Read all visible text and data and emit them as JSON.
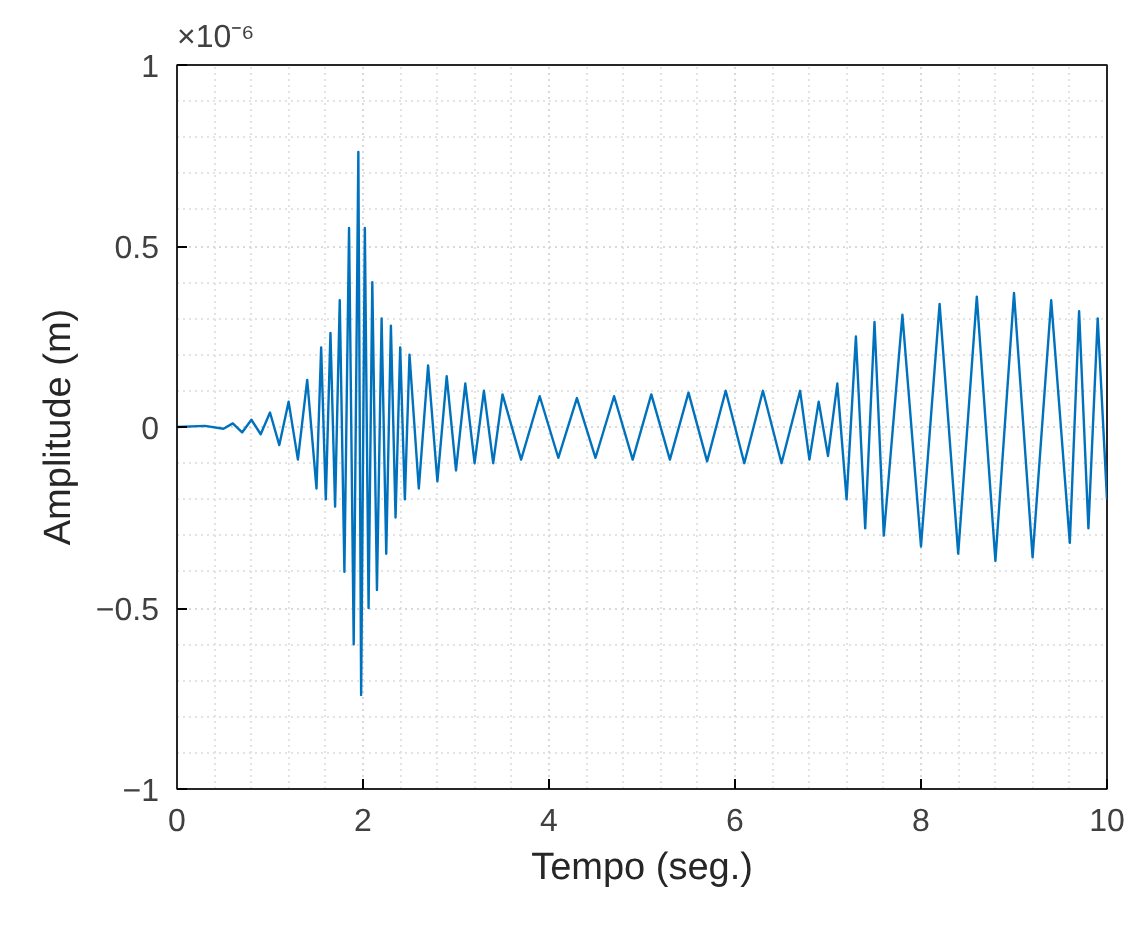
{
  "chart_data": {
    "type": "line",
    "xlabel": "Tempo (seg.)",
    "ylabel": "Amplitude (m)",
    "annotations": [
      "×10⁻⁶"
    ],
    "xlim": [
      0,
      10
    ],
    "xticks": [
      0,
      2,
      4,
      6,
      8,
      10
    ],
    "ylim": [
      -1,
      1
    ],
    "yticks": [
      -1,
      -0.5,
      0,
      0.5,
      1
    ],
    "grid": true,
    "line_style": "solid",
    "series": [
      {
        "color": "#0072bd",
        "x": [
          0,
          0.3,
          0.5,
          0.6,
          0.7,
          0.8,
          0.9,
          1.0,
          1.1,
          1.2,
          1.3,
          1.4,
          1.5,
          1.55,
          1.6,
          1.65,
          1.7,
          1.75,
          1.8,
          1.85,
          1.9,
          1.95,
          1.98,
          2.02,
          2.06,
          2.1,
          2.15,
          2.2,
          2.25,
          2.3,
          2.35,
          2.4,
          2.45,
          2.5,
          2.6,
          2.7,
          2.8,
          2.9,
          3.0,
          3.1,
          3.2,
          3.3,
          3.4,
          3.5,
          3.7,
          3.9,
          4.1,
          4.3,
          4.5,
          4.7,
          4.9,
          5.1,
          5.3,
          5.5,
          5.7,
          5.9,
          6.1,
          6.3,
          6.5,
          6.7,
          6.8,
          6.9,
          7.0,
          7.1,
          7.2,
          7.3,
          7.4,
          7.5,
          7.6,
          7.8,
          8.0,
          8.2,
          8.4,
          8.6,
          8.8,
          9.0,
          9.2,
          9.4,
          9.6,
          9.7,
          9.8,
          9.9,
          10.0
        ],
        "values": [
          0,
          0.003,
          -0.005,
          0.01,
          -0.015,
          0.02,
          -0.02,
          0.04,
          -0.05,
          0.07,
          -0.09,
          0.13,
          -0.17,
          0.22,
          -0.2,
          0.26,
          -0.22,
          0.35,
          -0.4,
          0.55,
          -0.6,
          0.76,
          -0.74,
          0.55,
          -0.5,
          0.4,
          -0.45,
          0.3,
          -0.35,
          0.28,
          -0.25,
          0.22,
          -0.2,
          0.2,
          -0.17,
          0.17,
          -0.15,
          0.14,
          -0.12,
          0.12,
          -0.1,
          0.1,
          -0.1,
          0.09,
          -0.09,
          0.085,
          -0.085,
          0.08,
          -0.085,
          0.085,
          -0.09,
          0.09,
          -0.09,
          0.095,
          -0.095,
          0.1,
          -0.1,
          0.1,
          -0.1,
          0.1,
          -0.09,
          0.07,
          -0.08,
          0.12,
          -0.2,
          0.25,
          -0.28,
          0.29,
          -0.3,
          0.31,
          -0.33,
          0.34,
          -0.35,
          0.36,
          -0.37,
          0.37,
          -0.36,
          0.35,
          -0.32,
          0.32,
          -0.28,
          0.3,
          -0.2
        ]
      }
    ]
  }
}
